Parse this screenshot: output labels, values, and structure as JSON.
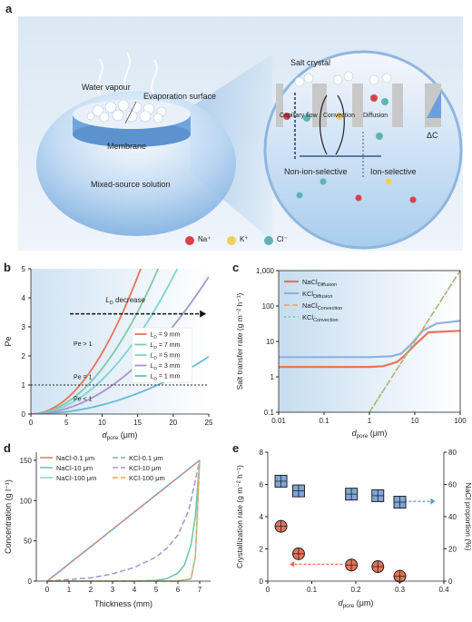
{
  "panel_a": {
    "label": "a",
    "water_vapour": "Water vapour",
    "evaporation_surface": "Evaporation surface",
    "membrane": "Membrane",
    "mixed_source": "Mixed-source solution",
    "salt_crystal": "Salt crystal",
    "capillary_flow": "Capillary flow",
    "convection": "Convection",
    "diffusion": "Diffusion",
    "delta_c": "ΔC",
    "non_ion_selective": "Non-ion-selective",
    "ion_selective": "Ion-selective",
    "legend": [
      {
        "label": "Na⁺",
        "color": "#d9414d"
      },
      {
        "label": "K⁺",
        "color": "#f1cf5a"
      },
      {
        "label": "Cl⁻",
        "color": "#5fb3b3"
      }
    ]
  },
  "chart_data": [
    {
      "panel": "b",
      "type": "line",
      "xlabel": "d",
      "xlabel_sub": "pore",
      "xlabel_unit": " (μm)",
      "ylabel": "Pe",
      "xlim": [
        0,
        25
      ],
      "ylim": [
        0,
        5
      ],
      "xticks": [
        "0",
        "5",
        "10",
        "15",
        "20",
        "25"
      ],
      "yticks": [
        "0",
        "1",
        "2",
        "3",
        "4",
        "5"
      ],
      "annotations": {
        "arrow_label_main": "L",
        "arrow_label_sub": "D",
        "arrow_label_rest": " decrease",
        "pe_gt": "Pe > 1",
        "pe_eq": "Pe = 1",
        "pe_lt": "Pe < 1"
      },
      "series": [
        {
          "name_main": "L",
          "name_sub": "D",
          "name_rest": " = 9 mm",
          "color": "#e8735a",
          "k": 6.9
        },
        {
          "name_main": "L",
          "name_sub": "D",
          "name_rest": " = 7 mm",
          "color": "#7fc9a8",
          "k": 8.0
        },
        {
          "name_main": "L",
          "name_sub": "D",
          "name_rest": " = 5 mm",
          "color": "#7fd3d3",
          "k": 9.2
        },
        {
          "name_main": "L",
          "name_sub": "D",
          "name_rest": " = 3 mm",
          "color": "#a596cc",
          "k": 11.5
        },
        {
          "name_main": "L",
          "name_sub": "D",
          "name_rest": " = 1 mm",
          "color": "#68b9d8",
          "k": 17.8
        }
      ]
    },
    {
      "panel": "c",
      "type": "line",
      "ylabel": "Salt transfer rate (g m⁻² h⁻¹)",
      "xlabel": "d",
      "xlabel_sub": "pore",
      "xlabel_unit": " (μm)",
      "xscale": "log",
      "yscale": "log",
      "xlim": [
        0.01,
        100
      ],
      "ylim": [
        0.1,
        1000
      ],
      "xticks": [
        "0.01",
        "0.1",
        "1",
        "10",
        "100"
      ],
      "yticks": [
        "1,000",
        "100",
        "10",
        "1",
        "0.1"
      ],
      "series": [
        {
          "name_main": "NaCl",
          "name_sub": "Diffusion",
          "color": "#e8735a",
          "style": "solid",
          "x": [
            0.01,
            1,
            2,
            4,
            6,
            10,
            20,
            100
          ],
          "y": [
            1.9,
            1.9,
            2.0,
            2.6,
            4.0,
            8.0,
            18,
            20
          ]
        },
        {
          "name_main": "KCl",
          "name_sub": "Diffusion",
          "color": "#8fb3dd",
          "style": "solid",
          "x": [
            0.01,
            1,
            3,
            5,
            8,
            15,
            30,
            100
          ],
          "y": [
            3.6,
            3.6,
            3.8,
            4.5,
            8.0,
            20,
            32,
            38
          ]
        },
        {
          "name_main": "NaCl",
          "name_sub": "Convection",
          "color": "#f0a050",
          "style": "dash",
          "x": [
            1,
            100
          ],
          "y": [
            0.1,
            1000
          ]
        },
        {
          "name_main": "KCl",
          "name_sub": "Convection",
          "color": "#6cc4a4",
          "style": "dot",
          "x": [
            1,
            100
          ],
          "y": [
            0.1,
            1000
          ]
        }
      ]
    },
    {
      "panel": "d",
      "type": "line",
      "ylabel": "Concentration (g l⁻¹)",
      "xlabel": "Thickness (mm)",
      "xlim": [
        -0.5,
        7.5
      ],
      "ylim": [
        0,
        160
      ],
      "xticks": [
        "0",
        "1",
        "2",
        "3",
        "4",
        "5",
        "6",
        "7"
      ],
      "yticks": [
        "0",
        "50",
        "100",
        "150"
      ],
      "series": [
        {
          "name": "NaCl-0.1 μm",
          "color": "#e8735a",
          "style": "solid",
          "x": [
            0,
            7
          ],
          "y": [
            0,
            150
          ]
        },
        {
          "name": "NaCl-10 μm",
          "color": "#6cc4a4",
          "style": "solid",
          "x": [
            0,
            4.0,
            5.0,
            5.5,
            6.0,
            6.3,
            6.6,
            6.8,
            7.0
          ],
          "y": [
            0,
            0,
            1,
            3,
            10,
            20,
            45,
            80,
            150
          ]
        },
        {
          "name": "NaCl-100 μm",
          "color": "#7fd3d3",
          "style": "solid",
          "x": [
            0,
            6.0,
            6.6,
            6.8,
            7.0
          ],
          "y": [
            0,
            0,
            3,
            30,
            150
          ]
        },
        {
          "name": "KCl-0.1 μm",
          "color": "#7fa6d8",
          "style": "dash",
          "x": [
            0,
            7
          ],
          "y": [
            0,
            150
          ]
        },
        {
          "name": "KCl-10 μm",
          "color": "#a596cc",
          "style": "dash",
          "x": [
            0,
            2,
            3,
            4,
            5,
            5.5,
            6.0,
            6.5,
            7.0
          ],
          "y": [
            0,
            4,
            9,
            17,
            30,
            41,
            57,
            88,
            150
          ]
        },
        {
          "name": "KCl-100 μm",
          "color": "#f0a050",
          "style": "dash",
          "x": [
            0,
            6.0,
            6.6,
            6.8,
            7.0
          ],
          "y": [
            0,
            0,
            3,
            30,
            150
          ]
        }
      ]
    },
    {
      "panel": "e",
      "type": "scatter",
      "ylabel_left": "Crystallization rate (g m⁻² h⁻¹)",
      "ylabel_right": "NaCl proportion (%)",
      "xlabel": "d",
      "xlabel_sub": "pore",
      "xlabel_unit": " (μm)",
      "xlim": [
        0,
        0.4
      ],
      "ylim_left": [
        0,
        8
      ],
      "ylim_right": [
        0,
        80
      ],
      "xticks": [
        "0",
        "0.1",
        "0.2",
        "0.3",
        "0.4"
      ],
      "yticks_left": [
        "0",
        "2",
        "4",
        "6",
        "8"
      ],
      "yticks_right": [
        "0",
        "20",
        "40",
        "60",
        "80"
      ],
      "series": [
        {
          "name": "Crystallization rate",
          "axis": "left",
          "marker": "square",
          "color": "#7fa6d8",
          "x": [
            0.03,
            0.07,
            0.19,
            0.25,
            0.3
          ],
          "y": [
            6.2,
            5.6,
            5.4,
            5.3,
            4.9
          ]
        },
        {
          "name": "NaCl proportion",
          "axis": "right",
          "marker": "circle",
          "color": "#e8735a",
          "x": [
            0.03,
            0.07,
            0.19,
            0.25,
            0.3
          ],
          "y": [
            34,
            17,
            10,
            9,
            3
          ]
        }
      ]
    }
  ]
}
